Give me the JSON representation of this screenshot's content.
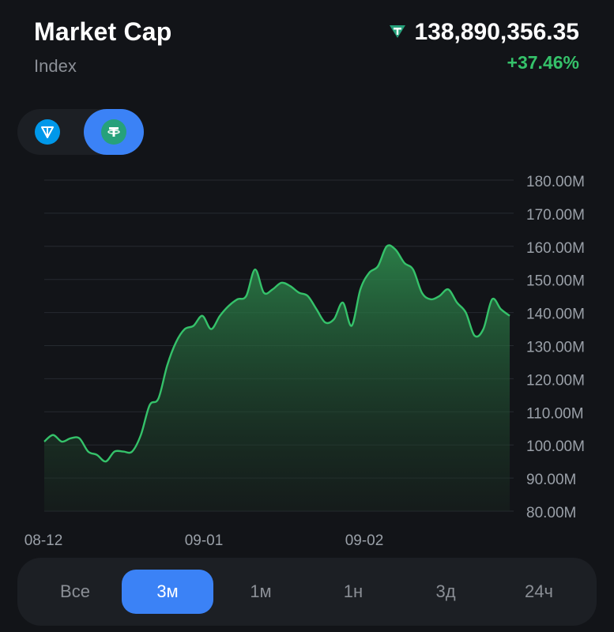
{
  "header": {
    "title": "Market Cap",
    "subtitle": "Index",
    "price": "138,890,356.35",
    "price_icon": "usdt-icon",
    "change": "+37.46%",
    "change_color": "#35c26a"
  },
  "token_switch": {
    "items": [
      {
        "name": "ton-icon",
        "selected": false
      },
      {
        "name": "usdt-icon",
        "selected": true
      }
    ],
    "accent": "#3b82f6"
  },
  "chart_data": {
    "type": "area",
    "line_color": "#35c26a",
    "ylim": [
      80,
      180
    ],
    "y_ticks": [
      "180.00M",
      "170.00M",
      "160.00M",
      "150.00M",
      "140.00M",
      "130.00M",
      "120.00M",
      "110.00M",
      "100.00M",
      "90.00M",
      "80.00M"
    ],
    "y_tick_values": [
      180,
      170,
      160,
      150,
      140,
      130,
      120,
      110,
      100,
      90,
      80
    ],
    "x_ticks": [
      "08-12",
      "09-01",
      "09-02"
    ],
    "x_tick_positions": [
      0,
      20,
      41
    ],
    "grid": true,
    "series": [
      {
        "values": [
          101,
          103,
          101,
          102,
          102,
          98,
          97,
          95,
          98,
          98,
          98,
          103,
          112,
          114,
          124,
          131,
          135,
          136,
          139,
          135,
          139,
          142,
          144,
          145,
          153,
          146,
          147,
          149,
          148,
          146,
          145,
          141,
          137,
          138,
          143,
          136,
          147,
          152,
          154,
          160,
          159,
          155,
          153,
          146,
          144,
          145,
          147,
          143,
          140,
          133,
          135,
          144,
          141,
          139
        ]
      }
    ]
  },
  "ranges": {
    "items": [
      "Все",
      "3м",
      "1м",
      "1н",
      "3д",
      "24ч"
    ],
    "active_index": 1
  }
}
